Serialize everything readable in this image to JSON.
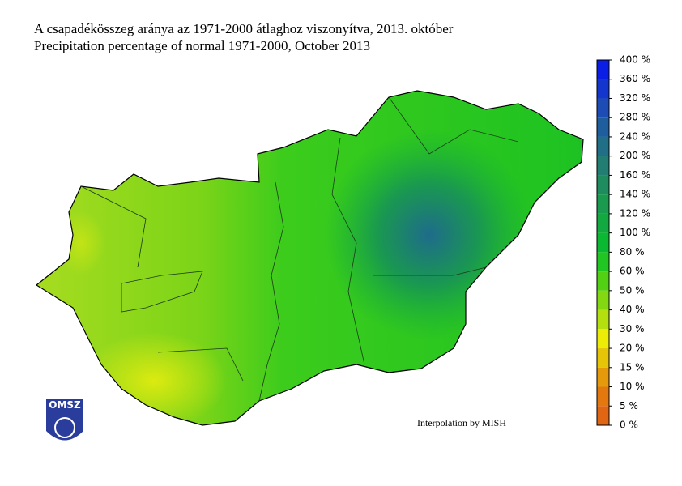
{
  "header": {
    "title_hu": "A csapadékösszeg aránya az 1971-2000 átlaghoz viszonyítva, 2013. október",
    "title_en": "Precipitation percentage of normal 1971-2000, October 2013"
  },
  "legend": {
    "labels": [
      "400 %",
      "360 %",
      "320 %",
      "280 %",
      "240 %",
      "200 %",
      "160 %",
      "140 %",
      "120 %",
      "100 %",
      "80 %",
      "60 %",
      "50 %",
      "40 %",
      "30 %",
      "20 %",
      "15 %",
      "10 %",
      "5 %",
      "0 %"
    ],
    "colors": [
      "#0a1ee6",
      "#1436cc",
      "#1c4cb4",
      "#1f5e9c",
      "#216f86",
      "#227e72",
      "#1f8c60",
      "#1a9a4e",
      "#12aa40",
      "#0ab832",
      "#22c622",
      "#52d014",
      "#84d812",
      "#b4e010",
      "#ecec06",
      "#e6c408",
      "#e49a0a",
      "#e2780e",
      "#e06614"
    ]
  },
  "logo": {
    "text": "OMSZ"
  },
  "note": "Interpolation by MISH"
}
